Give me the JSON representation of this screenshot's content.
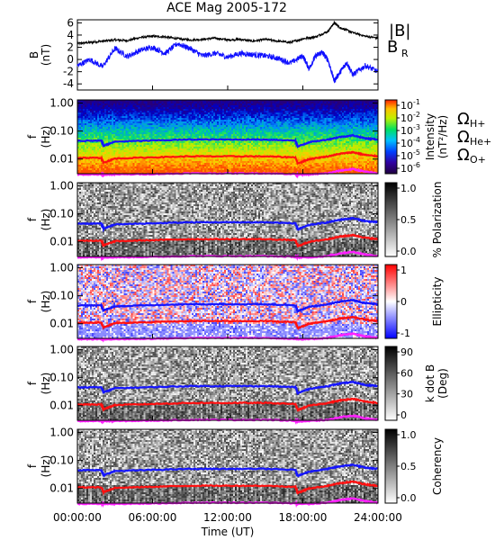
{
  "title": "ACE Mag 2005-172",
  "legend": {
    "b_total": "|B|",
    "b_r": "B",
    "b_r_sub": "R"
  },
  "legend_colors": {
    "b_total": "#000000",
    "b_r": "#1010ff"
  },
  "freq_ticks": [
    "1.00",
    "0.10",
    "0.01"
  ],
  "freq_axis": {
    "label": "f",
    "unit": "(Hz)",
    "scale": "log",
    "range": [
      0.003,
      1.3
    ]
  },
  "time_ticks": [
    "00:00:00",
    "06:00:00",
    "12:00:00",
    "18:00:00",
    "24:00:00"
  ],
  "x_label": "Time (UT)",
  "gyro_legend": [
    {
      "symbol": "Ω",
      "sub": "H+",
      "color": "#1515ff"
    },
    {
      "symbol": "Ω",
      "sub": "He+",
      "color": "#ff1010"
    },
    {
      "symbol": "Ω",
      "sub": "O+",
      "color": "#ff20ff"
    }
  ],
  "chart_data": [
    {
      "type": "line",
      "panel": "field",
      "ylabel": "B",
      "yunit": "(nT)",
      "yticks": [
        "6",
        "4",
        "2",
        "0",
        "-2",
        "-4"
      ],
      "ylim": [
        -5,
        6.5
      ],
      "xlim": [
        0,
        24
      ],
      "series": [
        {
          "name": "|B|",
          "color": "#000000",
          "x": [
            0,
            1,
            2,
            3,
            4,
            5,
            6,
            7,
            8,
            9,
            10,
            11,
            12,
            13,
            14,
            15,
            16,
            17,
            18,
            19,
            20,
            20.5,
            21,
            22,
            23,
            24
          ],
          "values": [
            2.6,
            2.8,
            3.0,
            3.2,
            3.1,
            3.6,
            3.8,
            3.7,
            3.4,
            3.2,
            3.3,
            3.5,
            3.2,
            3.3,
            3.0,
            3.3,
            3.0,
            2.8,
            3.4,
            3.7,
            4.6,
            6.0,
            5.2,
            4.4,
            3.8,
            3.5
          ]
        },
        {
          "name": "B R",
          "color": "#1010ff",
          "x": [
            0,
            1,
            2,
            3,
            4,
            5,
            6,
            7,
            8,
            9,
            10,
            11,
            12,
            13,
            14,
            15,
            16,
            17,
            18,
            18.5,
            19,
            19.5,
            20,
            20.5,
            21,
            21.5,
            22,
            23,
            24
          ],
          "values": [
            -1.0,
            0.0,
            -1.2,
            1.8,
            0.5,
            1.5,
            2.0,
            1.0,
            2.6,
            1.8,
            0.6,
            1.0,
            0.4,
            1.0,
            0.8,
            0.6,
            0.2,
            -0.6,
            0.6,
            -1.5,
            0.5,
            1.2,
            0.0,
            -3.5,
            -2.0,
            -0.5,
            -2.5,
            -1.0,
            -2.0
          ]
        }
      ]
    },
    {
      "type": "heatmap",
      "panel": "intensity",
      "colorbar_label": "Intensity",
      "colorbar_unit": "(nT²/Hz)",
      "colorbar_ticks": [
        "10-1",
        "10-2",
        "10-3",
        "10-4",
        "10-5",
        "10-6"
      ],
      "colorbar_range": [
        -6.5,
        -0.5
      ]
    },
    {
      "type": "heatmap",
      "panel": "polarization",
      "colorbar_label": "% Polarization",
      "colorbar_ticks": [
        "1.0",
        "0.5",
        "0.0"
      ],
      "colorbar_range": [
        0,
        1
      ]
    },
    {
      "type": "heatmap",
      "panel": "ellipticity",
      "colorbar_label": "Ellipticity",
      "colorbar_ticks": [
        "1",
        "0",
        "-1"
      ],
      "colorbar_range": [
        -1,
        1
      ]
    },
    {
      "type": "heatmap",
      "panel": "kdotb",
      "colorbar_label": "k dot B",
      "colorbar_unit": "(Deg)",
      "colorbar_ticks": [
        "90",
        "60",
        "30",
        "0"
      ],
      "colorbar_range": [
        0,
        90
      ]
    },
    {
      "type": "heatmap",
      "panel": "coherency",
      "colorbar_label": "Coherency",
      "colorbar_ticks": [
        "1.0",
        "0.5",
        "0.0"
      ],
      "colorbar_range": [
        0,
        1
      ]
    }
  ],
  "gyrofrequency_hz": {
    "x": [
      0,
      1.9,
      2.1,
      3,
      6,
      9,
      12,
      15,
      17.4,
      17.6,
      18.5,
      20,
      21,
      22,
      23,
      24
    ],
    "h_plus": [
      0.045,
      0.045,
      0.03,
      0.042,
      0.046,
      0.05,
      0.05,
      0.05,
      0.046,
      0.028,
      0.04,
      0.05,
      0.062,
      0.07,
      0.055,
      0.05
    ],
    "he_plus": [
      0.011,
      0.011,
      0.0075,
      0.0105,
      0.0115,
      0.0125,
      0.0125,
      0.0125,
      0.0115,
      0.007,
      0.01,
      0.0125,
      0.0155,
      0.0175,
      0.014,
      0.0125
    ],
    "o_plus": [
      0.0028,
      0.0028,
      0.0028,
      0.0028,
      0.0029,
      0.0031,
      0.0031,
      0.0031,
      0.0029,
      0.0028,
      0.0028,
      0.0031,
      0.0039,
      0.0044,
      0.0035,
      0.0031
    ]
  }
}
